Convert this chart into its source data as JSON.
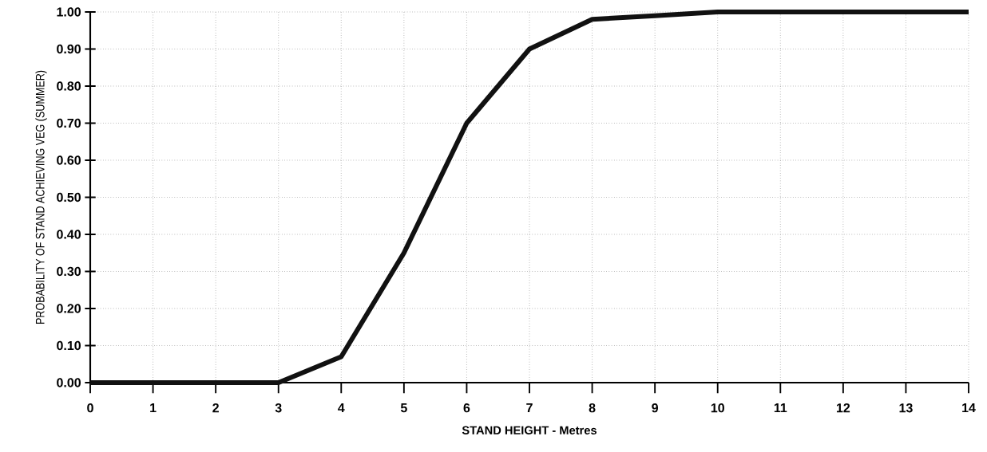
{
  "chart_data": {
    "type": "line",
    "xlabel": "STAND HEIGHT - Metres",
    "ylabel": "PROBABILITY OF STAND ACHIEVING VEG (SUMMER)",
    "x": [
      0,
      1,
      2,
      3,
      4,
      5,
      6,
      7,
      8,
      9,
      10,
      11,
      12,
      13,
      14
    ],
    "series": [
      {
        "color": "#111111",
        "values": [
          0,
          0,
          0,
          0,
          0.07,
          0.35,
          0.7,
          0.9,
          0.98,
          0.99,
          1.0,
          1.0,
          1.0,
          1.0,
          1.0
        ]
      }
    ],
    "xlim": [
      0,
      14
    ],
    "ylim": [
      0,
      1
    ],
    "xticks": [
      0,
      1,
      2,
      3,
      4,
      5,
      6,
      7,
      8,
      9,
      10,
      11,
      12,
      13,
      14
    ],
    "yticks": [
      {
        "value": 0,
        "label": "0.00"
      },
      {
        "value": 0.1,
        "label": "0.10"
      },
      {
        "value": 0.2,
        "label": "0.20"
      },
      {
        "value": 0.3,
        "label": "0.30"
      },
      {
        "value": 0.4,
        "label": "0.40"
      },
      {
        "value": 0.5,
        "label": "0.50"
      },
      {
        "value": 0.6,
        "label": "0.60"
      },
      {
        "value": 0.7,
        "label": "0.70"
      },
      {
        "value": 0.8,
        "label": "0.80"
      },
      {
        "value": 0.9,
        "label": "0.90"
      },
      {
        "value": 1,
        "label": "1.00"
      }
    ],
    "grid": true
  }
}
